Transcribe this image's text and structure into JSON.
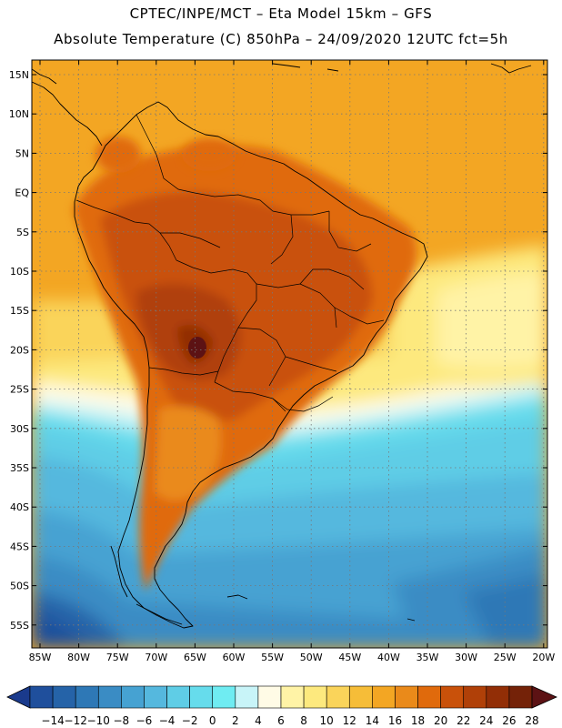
{
  "header": {
    "line1": "CPTEC/INPE/MCT –  Eta Model 15km – GFS",
    "line2": "Absolute Temperature (C) 850hPa – 24/09/2020 12UTC fct=5h"
  },
  "map": {
    "lat_labels": [
      "15N",
      "10N",
      "5N",
      "EQ",
      "5S",
      "10S",
      "15S",
      "20S",
      "25S",
      "30S",
      "35S",
      "40S",
      "45S",
      "50S",
      "55S"
    ],
    "lon_labels": [
      "85W",
      "80W",
      "75W",
      "70W",
      "65W",
      "60W",
      "55W",
      "50W",
      "45W",
      "40W",
      "35W",
      "30W",
      "25W",
      "20W"
    ],
    "colors": {
      "land_line": "#000000",
      "grid_line": "#777777"
    }
  },
  "colorbar": {
    "labels": [
      "-14",
      "-12",
      "-10",
      "-8",
      "-6",
      "-4",
      "-2",
      "0",
      "2",
      "4",
      "6",
      "8",
      "10",
      "12",
      "14",
      "16",
      "18",
      "20",
      "22",
      "24",
      "26",
      "28"
    ],
    "colors": [
      "#1a3a8c",
      "#1f4f9c",
      "#2563a8",
      "#2e78b6",
      "#3a8cc4",
      "#46a2d2",
      "#55b8de",
      "#5fcde6",
      "#66dcec",
      "#6fecf2",
      "#c8f4f8",
      "#fffbe6",
      "#fff3a6",
      "#fde97e",
      "#fad45a",
      "#f6bd38",
      "#f3a623",
      "#ea8a1a",
      "#e06a0c",
      "#c9510a",
      "#b04008",
      "#922e06",
      "#742208",
      "#5c1214"
    ]
  }
}
